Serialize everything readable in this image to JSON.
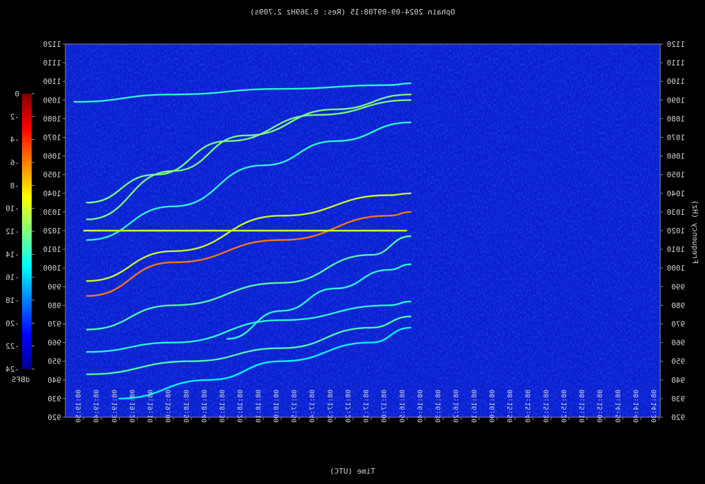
{
  "chart_data": {
    "type": "heatmap",
    "mirrored": true,
    "title": "Ophain 2024-09-09T08:15 (Res: 0.369Hz 2.709s)",
    "xlabel": "Time (UTC)",
    "ylabel": "Frequency (Hz)",
    "colorbar_label": "dBFS",
    "colorbar_ticks": [
      "0",
      "-2",
      "-4",
      "-6",
      "-8",
      "-10",
      "-12",
      "-14",
      "-16",
      "-18",
      "-20",
      "-22",
      "-24"
    ],
    "colorbar_range": [
      -24,
      0
    ],
    "y_ticks": [
      "1120",
      "1110",
      "1100",
      "1090",
      "1080",
      "1070",
      "1060",
      "1050",
      "1040",
      "1030",
      "1020",
      "1010",
      "1000",
      "990",
      "980",
      "970",
      "960",
      "950",
      "940",
      "930",
      "920"
    ],
    "ylim": [
      920,
      1120
    ],
    "x_ticks": [
      "08:19:50",
      "08:19:40",
      "08:19:30",
      "08:19:20",
      "08:19:10",
      "08:19:00",
      "08:18:50",
      "08:18:40",
      "08:18:30",
      "08:18:20",
      "08:18:10",
      "08:18:00",
      "08:17:50",
      "08:17:40",
      "08:17:30",
      "08:17:20",
      "08:17:10",
      "08:17:00",
      "08:16:50",
      "08:16:40",
      "08:16:30",
      "08:16:20",
      "08:16:10",
      "08:16:00",
      "08:15:50",
      "08:15:40",
      "08:15:30",
      "08:15:20",
      "08:15:10",
      "08:15:00",
      "08:14:50",
      "08:14:40",
      "08:14:30"
    ],
    "background_level_dbfs": -22,
    "carrier": {
      "freq": 1020,
      "level_dbfs": -10,
      "time_from": "08:19:50",
      "time_to": "08:16:50"
    },
    "traces": [
      {
        "t": [
          "08:19:55",
          "08:19:00",
          "08:18:00",
          "08:17:00",
          "08:16:48"
        ],
        "f": [
          1089,
          1093,
          1096,
          1098,
          1099
        ],
        "level_dbfs": -14
      },
      {
        "t": [
          "08:19:48",
          "08:19:00",
          "08:18:20",
          "08:17:30",
          "08:16:48"
        ],
        "f": [
          1026,
          1052,
          1071,
          1085,
          1093
        ],
        "level_dbfs": -12
      },
      {
        "t": [
          "08:19:48",
          "08:19:10",
          "08:18:30",
          "08:17:40",
          "08:16:48"
        ],
        "f": [
          1035,
          1050,
          1068,
          1082,
          1090
        ],
        "level_dbfs": -12
      },
      {
        "t": [
          "08:19:48",
          "08:19:00",
          "08:18:10",
          "08:17:30",
          "08:16:48"
        ],
        "f": [
          1015,
          1033,
          1055,
          1068,
          1078
        ],
        "level_dbfs": -14
      },
      {
        "t": [
          "08:19:48",
          "08:19:00",
          "08:18:00",
          "08:17:00",
          "08:16:48"
        ],
        "f": [
          993,
          1009,
          1028,
          1039,
          1040
        ],
        "level_dbfs": -10
      },
      {
        "t": [
          "08:19:48",
          "08:19:00",
          "08:18:00",
          "08:17:00",
          "08:16:48"
        ],
        "f": [
          985,
          1003,
          1015,
          1028,
          1030
        ],
        "level_dbfs": -6
      },
      {
        "t": [
          "08:19:48",
          "08:19:00",
          "08:18:00",
          "08:17:10",
          "08:16:48"
        ],
        "f": [
          967,
          980,
          992,
          1007,
          1017
        ],
        "level_dbfs": -13
      },
      {
        "t": [
          "08:19:48",
          "08:19:00",
          "08:18:00",
          "08:17:00",
          "08:16:48"
        ],
        "f": [
          955,
          960,
          972,
          980,
          982
        ],
        "level_dbfs": -14
      },
      {
        "t": [
          "08:19:48",
          "08:18:50",
          "08:18:00",
          "08:17:10",
          "08:16:48"
        ],
        "f": [
          943,
          950,
          957,
          968,
          974
        ],
        "level_dbfs": -13
      },
      {
        "t": [
          "08:19:30",
          "08:18:40",
          "08:18:00",
          "08:17:10",
          "08:16:48"
        ],
        "f": [
          930,
          940,
          950,
          960,
          968
        ],
        "level_dbfs": -15
      },
      {
        "t": [
          "08:18:30",
          "08:18:00",
          "08:17:30",
          "08:17:00",
          "08:16:48"
        ],
        "f": [
          962,
          977,
          989,
          999,
          1002
        ],
        "level_dbfs": -14
      }
    ]
  }
}
